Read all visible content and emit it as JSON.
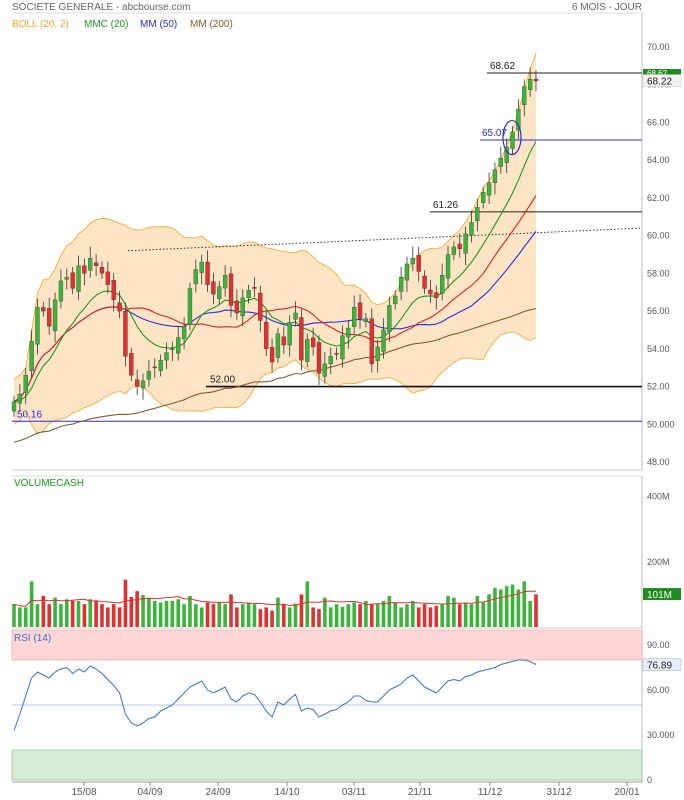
{
  "header": {
    "title": "SOCIETE GENERALE - abcbourse.com",
    "period": "6 MOIS - JOUR"
  },
  "colors": {
    "boll": "#f5a623",
    "boll_fill": "#fde4c4",
    "mmc20": "#1a9a1a",
    "mm50": "#2c2cdc",
    "mm200": "#8b5a2b",
    "mm_red": "#e02020",
    "up": "#3cb43c",
    "down": "#e03030",
    "rsi": "#3a6fc8",
    "rsi_over": "#ffd6d6",
    "rsi_under": "#d6ecd6",
    "last_badge": "#1e8c1e"
  },
  "chart_data": [
    {
      "type": "candlestick",
      "legend": [
        {
          "label": "BOLL (20, 2)",
          "color": "#f5a623"
        },
        {
          "label": "MMC (20)",
          "color": "#1a9a1a"
        },
        {
          "label": "MM (50)",
          "color": "#2c2cdc"
        },
        {
          "label": "MM (200)",
          "color": "#8b5a2b"
        }
      ],
      "ylim": [
        48,
        70
      ],
      "y_ticks": [
        "70.00",
        "68.00",
        "66.00",
        "64.00",
        "62.00",
        "60.00",
        "58.00",
        "56.00",
        "54.00",
        "52.00",
        "50.000",
        "48.00"
      ],
      "last_price": "68.22",
      "high_tag": "68.62",
      "annotations": [
        {
          "label": "68.62",
          "y": 68.62
        },
        {
          "label": "65.07",
          "y": 65.07
        },
        {
          "label": "61.26",
          "y": 61.26
        },
        {
          "label": "52.00",
          "y": 52.0
        },
        {
          "label": "50.16",
          "y": 50.16
        }
      ],
      "close": [
        51.2,
        51.6,
        52.6,
        54.4,
        56.2,
        56.0,
        55.2,
        56.6,
        57.6,
        57.8,
        57.2,
        58.4,
        58.0,
        58.8,
        58.4,
        58.0,
        57.4,
        56.6,
        56.0,
        53.6,
        52.6,
        52.0,
        52.3,
        52.8,
        53.0,
        53.4,
        53.8,
        54.0,
        54.6,
        55.2,
        57.2,
        58.2,
        58.6,
        57.4,
        56.9,
        57.3,
        57.9,
        56.3,
        55.9,
        56.7,
        57.1,
        57.2,
        55.5,
        54.0,
        53.3,
        54.8,
        54.2,
        55.4,
        55.9,
        53.4,
        54.5,
        54.1,
        52.7,
        53.2,
        53.6,
        53.7,
        54.7,
        55.1,
        56.2,
        55.6,
        55.6,
        53.2,
        54.1,
        55.0,
        56.3,
        56.8,
        57.8,
        58.5,
        58.8,
        58.1,
        57.2,
        56.9,
        56.7,
        57.9,
        59.0,
        59.4,
        59.3,
        60.1,
        60.7,
        61.5,
        62.3,
        62.8,
        63.5,
        64.1,
        64.7,
        65.5,
        66.7,
        67.9,
        68.3,
        68.2
      ],
      "volume_ylim": [
        0,
        420
      ],
      "volume_ticks": [
        "400M",
        "200M"
      ],
      "volume_last": "101M",
      "volume_label": "VOLUMECASH",
      "volumes": [
        70,
        60,
        60,
        140,
        70,
        95,
        70,
        90,
        70,
        85,
        80,
        80,
        70,
        85,
        80,
        70,
        60,
        70,
        60,
        145,
        92,
        110,
        98,
        90,
        80,
        75,
        80,
        80,
        85,
        70,
        95,
        70,
        60,
        75,
        70,
        75,
        70,
        100,
        60,
        70,
        75,
        70,
        55,
        60,
        50,
        90,
        70,
        60,
        72,
        100,
        140,
        60,
        55,
        90,
        60,
        70,
        62,
        70,
        75,
        70,
        80,
        70,
        70,
        80,
        95,
        75,
        60,
        70,
        80,
        60,
        70,
        60,
        65,
        70,
        95,
        90,
        70,
        75,
        70,
        95,
        75,
        100,
        120,
        115,
        125,
        130,
        115,
        140,
        80,
        100
      ],
      "rsi_label": "RSI (14)",
      "rsi_ylim": [
        0,
        100
      ],
      "rsi_ticks": [
        "90.00",
        "60.00",
        "30.000",
        "0"
      ],
      "rsi_last": "76.89",
      "rsi": [
        33,
        44,
        56,
        68,
        72,
        70,
        68,
        72,
        74,
        75,
        71,
        74,
        72,
        76,
        74,
        71,
        67,
        63,
        58,
        44,
        38,
        36,
        38,
        41,
        42,
        46,
        48,
        50,
        54,
        58,
        62,
        64,
        66,
        60,
        58,
        60,
        62,
        54,
        52,
        56,
        58,
        57,
        52,
        46,
        42,
        52,
        50,
        54,
        57,
        46,
        48,
        47,
        42,
        44,
        46,
        47,
        50,
        52,
        56,
        56,
        53,
        52,
        52,
        56,
        60,
        62,
        64,
        68,
        70,
        66,
        62,
        60,
        58,
        62,
        66,
        67,
        66,
        69,
        70,
        72,
        73,
        74,
        75,
        77,
        78,
        79,
        80,
        80,
        79,
        77
      ],
      "x_ticks": [
        "15/08",
        "04/09",
        "24/09",
        "14/10",
        "03/11",
        "21/11",
        "11/12",
        "31/12",
        "20/01"
      ]
    }
  ]
}
